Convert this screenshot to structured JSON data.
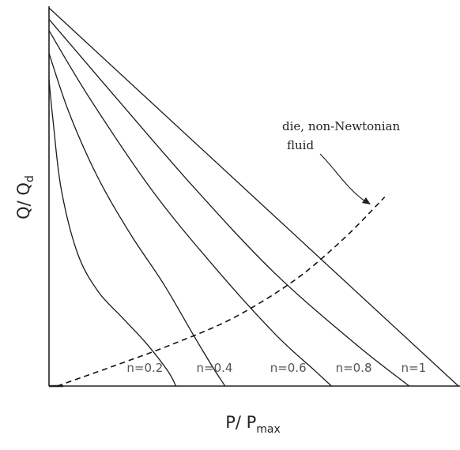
{
  "chart_data": {
    "type": "line",
    "title": "",
    "xlabel": {
      "main": "P/ P",
      "sub": "max"
    },
    "ylabel": {
      "main": "Q/ Q",
      "sub": "d"
    },
    "xlim": [
      0,
      1
    ],
    "ylim": [
      0,
      1
    ],
    "grid": false,
    "series": [
      {
        "name": "n=1",
        "label_at_x": 0.86,
        "x": [
          0,
          1.0
        ],
        "y": [
          1.0,
          0.0
        ]
      },
      {
        "name": "n=0.8",
        "label_at_x": 0.7,
        "x": [
          0,
          0.15,
          0.35,
          0.55,
          0.75,
          0.88
        ],
        "y": [
          0.97,
          0.78,
          0.53,
          0.3,
          0.11,
          0.0
        ]
      },
      {
        "name": "n=0.6",
        "label_at_x": 0.54,
        "x": [
          0,
          0.1,
          0.25,
          0.4,
          0.55,
          0.65,
          0.69
        ],
        "y": [
          0.94,
          0.76,
          0.52,
          0.32,
          0.14,
          0.04,
          0.0
        ]
      },
      {
        "name": "n=0.4",
        "label_at_x": 0.36,
        "x": [
          0,
          0.05,
          0.12,
          0.2,
          0.28,
          0.35,
          0.4,
          0.43
        ],
        "y": [
          0.88,
          0.72,
          0.55,
          0.4,
          0.27,
          0.14,
          0.05,
          0.0
        ]
      },
      {
        "name": "n=0.2",
        "label_at_x": 0.19,
        "x": [
          0,
          0.01,
          0.03,
          0.07,
          0.12,
          0.18,
          0.24,
          0.29,
          0.31
        ],
        "y": [
          0.81,
          0.7,
          0.52,
          0.35,
          0.25,
          0.18,
          0.11,
          0.04,
          0.0
        ]
      }
    ],
    "die_curve": {
      "name": "die, non-Newtonian fluid",
      "style": "dashed",
      "x": [
        0.02,
        0.15,
        0.3,
        0.45,
        0.6,
        0.72,
        0.82
      ],
      "y": [
        0.0,
        0.05,
        0.11,
        0.18,
        0.28,
        0.39,
        0.5
      ]
    },
    "annotation": {
      "lines": [
        "die, non-Newtonian",
        "fluid"
      ]
    }
  }
}
